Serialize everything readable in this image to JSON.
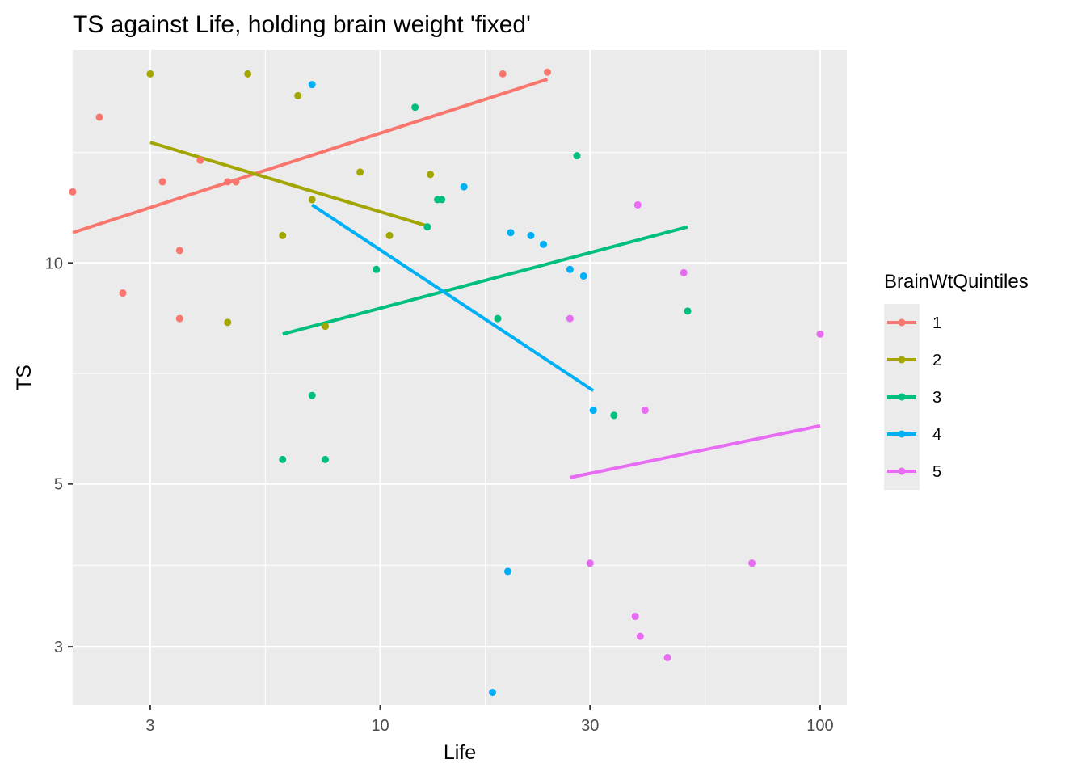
{
  "chart_data": {
    "type": "scatter",
    "title": "TS against Life, holding brain weight 'fixed'",
    "xlabel": "Life",
    "ylabel": "TS",
    "x_scale": "log10",
    "y_scale": "log10",
    "xlim": [
      2.0,
      115
    ],
    "ylim": [
      2.5,
      19.5
    ],
    "x_ticks": [
      3,
      10,
      30,
      100
    ],
    "y_ticks": [
      3,
      5,
      10
    ],
    "x_minor_ticks": [
      5.48,
      17.32,
      54.77
    ],
    "y_minor_ticks": [
      3.873,
      7.071,
      14.142
    ],
    "grid": true,
    "legend": {
      "title": "BrainWtQuintiles",
      "position": "right"
    },
    "colors": {
      "panel_background": "#ebebeb",
      "grid": "#ffffff"
    },
    "series": [
      {
        "name": "1",
        "color": "#f8766d",
        "points": [
          [
            2.0,
            12.5
          ],
          [
            2.3,
            15.8
          ],
          [
            2.6,
            9.1
          ],
          [
            3.2,
            12.9
          ],
          [
            3.5,
            10.4
          ],
          [
            3.5,
            8.4
          ],
          [
            3.9,
            13.8
          ],
          [
            4.5,
            12.9
          ],
          [
            4.7,
            12.9
          ],
          [
            19.0,
            18.1
          ],
          [
            24.0,
            18.2
          ]
        ],
        "fit": [
          [
            2.0,
            11.0
          ],
          [
            24.0,
            17.8
          ]
        ]
      },
      {
        "name": "2",
        "color": "#a3a500",
        "points": [
          [
            3.0,
            18.1
          ],
          [
            5.0,
            18.1
          ],
          [
            4.5,
            8.3
          ],
          [
            6.0,
            10.9
          ],
          [
            6.5,
            16.9
          ],
          [
            7.0,
            12.2
          ],
          [
            7.5,
            8.2
          ],
          [
            9.0,
            13.3
          ],
          [
            10.5,
            10.9
          ],
          [
            13.0,
            13.2
          ]
        ],
        "fit": [
          [
            3.0,
            14.6
          ],
          [
            13.0,
            11.2
          ]
        ]
      },
      {
        "name": "3",
        "color": "#00bf7d",
        "points": [
          [
            6.0,
            5.4
          ],
          [
            7.0,
            6.6
          ],
          [
            7.5,
            5.4
          ],
          [
            9.8,
            9.8
          ],
          [
            12.0,
            16.3
          ],
          [
            12.8,
            11.2
          ],
          [
            13.5,
            12.2
          ],
          [
            13.8,
            12.2
          ],
          [
            18.5,
            8.4
          ],
          [
            28.0,
            14.0
          ],
          [
            34.0,
            6.2
          ],
          [
            50.0,
            8.6
          ]
        ],
        "fit": [
          [
            6.0,
            8.0
          ],
          [
            50.0,
            11.2
          ]
        ]
      },
      {
        "name": "4",
        "color": "#00b0f6",
        "points": [
          [
            7.0,
            17.5
          ],
          [
            15.5,
            12.7
          ],
          [
            18.0,
            2.6
          ],
          [
            19.5,
            3.8
          ],
          [
            19.8,
            11.0
          ],
          [
            22.0,
            10.9
          ],
          [
            23.5,
            10.6
          ],
          [
            27.0,
            9.8
          ],
          [
            29.0,
            9.6
          ],
          [
            30.5,
            6.3
          ]
        ],
        "fit": [
          [
            7.0,
            12.0
          ],
          [
            30.5,
            6.7
          ]
        ]
      },
      {
        "name": "5",
        "color": "#e76bf3",
        "points": [
          [
            27.0,
            8.4
          ],
          [
            30.0,
            3.9
          ],
          [
            38.0,
            3.3
          ],
          [
            38.5,
            12.0
          ],
          [
            39.0,
            3.1
          ],
          [
            40.0,
            6.3
          ],
          [
            45.0,
            2.9
          ],
          [
            49.0,
            9.7
          ],
          [
            70.0,
            3.9
          ],
          [
            100.0,
            8.0
          ]
        ],
        "fit": [
          [
            27.0,
            5.1
          ],
          [
            100.0,
            6.0
          ]
        ]
      }
    ]
  }
}
